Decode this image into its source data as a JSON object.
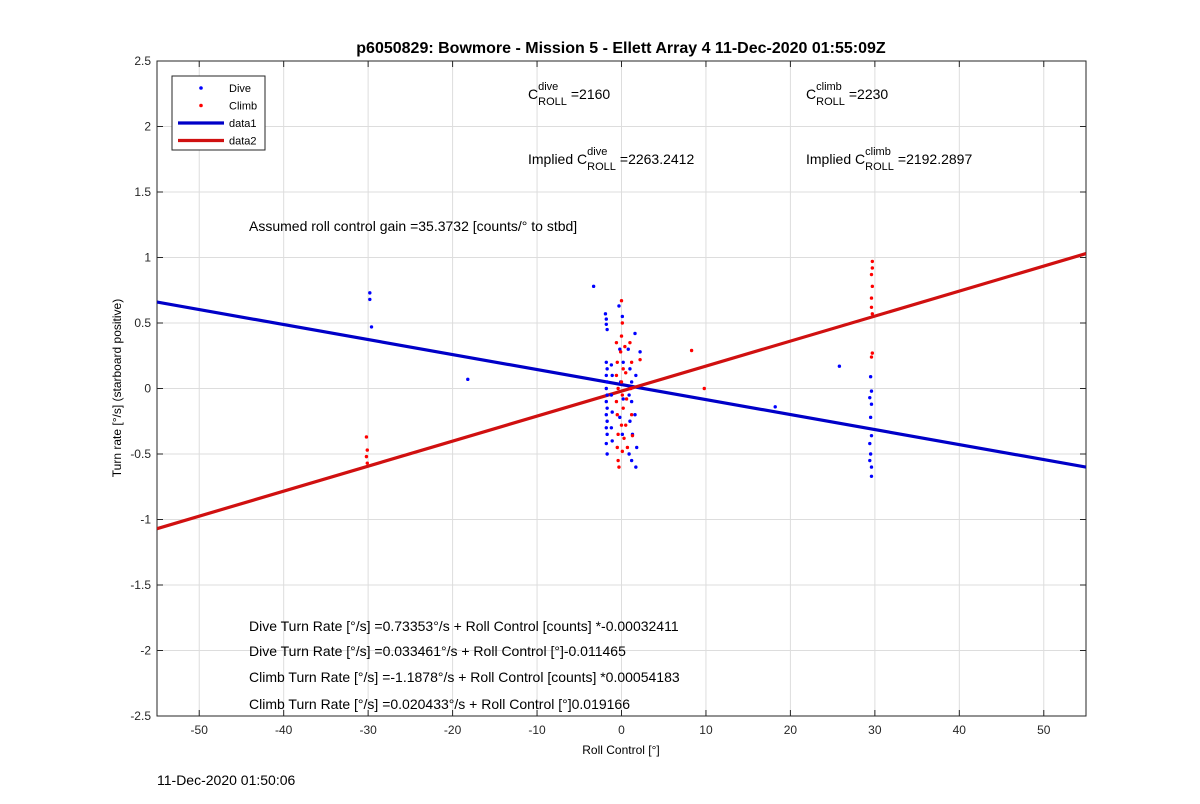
{
  "footer_timestamp": "11-Dec-2020 01:50:06",
  "colors": {
    "dive": "#0000ff",
    "climb": "#ff0000",
    "fit_dive": "#0000c8",
    "fit_climb": "#d01010",
    "grid": "#dddddd"
  },
  "chart_data": {
    "type": "scatter",
    "title": "p6050829: Bowmore - Mission 5 - Ellett Array 4 11-Dec-2020 01:55:09Z",
    "xlabel": "Roll Control [°]",
    "ylabel": "Turn rate [°/s] (starboard positive)",
    "xlim": [
      -55,
      55
    ],
    "ylim": [
      -2.5,
      2.5
    ],
    "xticks": [
      -50,
      -40,
      -30,
      -20,
      -10,
      0,
      10,
      20,
      30,
      40,
      50
    ],
    "yticks": [
      -2.5,
      -2,
      -1.5,
      -1,
      -0.5,
      0,
      0.5,
      1,
      1.5,
      2,
      2.5
    ],
    "grid": true,
    "legend": {
      "position": "top-left",
      "entries": [
        {
          "label": "Dive",
          "style": "marker",
          "color": "#0000ff"
        },
        {
          "label": "Climb",
          "style": "marker",
          "color": "#ff0000"
        },
        {
          "label": "data1",
          "style": "line",
          "color": "#0000c8"
        },
        {
          "label": "data2",
          "style": "line",
          "color": "#d01010"
        }
      ]
    },
    "series": [
      {
        "name": "Dive",
        "style": "points",
        "color": "#0000ff",
        "points": [
          [
            -29.8,
            0.73
          ],
          [
            -29.8,
            0.68
          ],
          [
            -29.6,
            0.47
          ],
          [
            -18.2,
            0.07
          ],
          [
            -3.3,
            0.78
          ],
          [
            -1.9,
            0.57
          ],
          [
            -1.8,
            0.53
          ],
          [
            -1.8,
            0.49
          ],
          [
            -1.7,
            0.45
          ],
          [
            -1.8,
            0.2
          ],
          [
            -1.7,
            0.15
          ],
          [
            -1.8,
            0.1
          ],
          [
            -1.7,
            0.05
          ],
          [
            -1.8,
            0.0
          ],
          [
            -1.7,
            -0.05
          ],
          [
            -1.8,
            -0.1
          ],
          [
            -1.7,
            -0.15
          ],
          [
            -1.8,
            -0.2
          ],
          [
            -1.7,
            -0.25
          ],
          [
            -1.8,
            -0.3
          ],
          [
            -1.7,
            -0.35
          ],
          [
            -1.8,
            -0.42
          ],
          [
            -1.7,
            -0.5
          ],
          [
            -1.2,
            0.18
          ],
          [
            -1.1,
            0.1
          ],
          [
            -1.2,
            -0.05
          ],
          [
            -1.1,
            -0.18
          ],
          [
            -1.2,
            -0.3
          ],
          [
            -1.1,
            -0.4
          ],
          [
            -0.3,
            0.63
          ],
          [
            0.1,
            0.55
          ],
          [
            -0.2,
            0.3
          ],
          [
            0.2,
            0.2
          ],
          [
            -0.1,
            0.05
          ],
          [
            0.2,
            -0.08
          ],
          [
            -0.2,
            -0.22
          ],
          [
            0.1,
            -0.35
          ],
          [
            0.8,
            0.3
          ],
          [
            1.0,
            0.15
          ],
          [
            0.9,
            -0.05
          ],
          [
            1.0,
            -0.25
          ],
          [
            0.9,
            -0.5
          ],
          [
            1.2,
            0.05
          ],
          [
            1.2,
            -0.1
          ],
          [
            1.3,
            -0.35
          ],
          [
            1.2,
            -0.55
          ],
          [
            1.6,
            0.42
          ],
          [
            1.7,
            0.1
          ],
          [
            1.6,
            -0.2
          ],
          [
            1.8,
            -0.45
          ],
          [
            1.7,
            -0.6
          ],
          [
            2.2,
            0.28
          ],
          [
            18.2,
            -0.14
          ],
          [
            25.8,
            0.17
          ],
          [
            29.5,
            0.09
          ],
          [
            29.6,
            -0.02
          ],
          [
            29.4,
            -0.07
          ],
          [
            29.6,
            -0.12
          ],
          [
            29.5,
            -0.22
          ],
          [
            29.6,
            -0.36
          ],
          [
            29.4,
            -0.42
          ],
          [
            29.5,
            -0.5
          ],
          [
            29.4,
            -0.55
          ],
          [
            29.6,
            -0.6
          ],
          [
            29.6,
            -0.67
          ]
        ]
      },
      {
        "name": "Climb",
        "style": "points",
        "color": "#ff0000",
        "points": [
          [
            -30.2,
            -0.37
          ],
          [
            -30.1,
            -0.47
          ],
          [
            -30.2,
            -0.52
          ],
          [
            -30.1,
            -0.57
          ],
          [
            -0.6,
            0.35
          ],
          [
            -0.5,
            0.2
          ],
          [
            -0.6,
            0.1
          ],
          [
            -0.4,
            0.0
          ],
          [
            -0.6,
            -0.1
          ],
          [
            -0.5,
            -0.2
          ],
          [
            -0.4,
            -0.35
          ],
          [
            -0.5,
            -0.45
          ],
          [
            -0.4,
            -0.55
          ],
          [
            -0.3,
            -0.6
          ],
          [
            0.0,
            0.67
          ],
          [
            0.1,
            0.5
          ],
          [
            0.0,
            0.4
          ],
          [
            -0.1,
            0.28
          ],
          [
            0.2,
            0.15
          ],
          [
            0.0,
            0.05
          ],
          [
            0.1,
            -0.05
          ],
          [
            0.2,
            -0.15
          ],
          [
            0.0,
            -0.28
          ],
          [
            0.3,
            -0.38
          ],
          [
            0.1,
            -0.48
          ],
          [
            0.4,
            0.32
          ],
          [
            0.5,
            0.12
          ],
          [
            0.6,
            -0.08
          ],
          [
            0.5,
            -0.28
          ],
          [
            0.7,
            -0.45
          ],
          [
            1.2,
            0.2
          ],
          [
            1.1,
            0.0
          ],
          [
            1.2,
            -0.2
          ],
          [
            1.3,
            -0.36
          ],
          [
            1.0,
            0.35
          ],
          [
            2.2,
            0.22
          ],
          [
            8.3,
            0.29
          ],
          [
            9.8,
            0.0
          ],
          [
            29.7,
            0.97
          ],
          [
            29.7,
            0.92
          ],
          [
            29.6,
            0.87
          ],
          [
            29.7,
            0.78
          ],
          [
            29.6,
            0.69
          ],
          [
            29.6,
            0.62
          ],
          [
            29.7,
            0.57
          ],
          [
            29.7,
            0.27
          ],
          [
            29.6,
            0.24
          ]
        ]
      },
      {
        "name": "data1",
        "style": "line",
        "color": "#0000c8",
        "x": [
          -55,
          55
        ],
        "y": [
          0.66,
          -0.6
        ]
      },
      {
        "name": "data2",
        "style": "line",
        "color": "#d01010",
        "x": [
          -55,
          55
        ],
        "y": [
          -1.07,
          1.03
        ]
      }
    ],
    "annotations": [
      {
        "text": "Assumed roll control gain =35.3732 [counts/° to stbd]"
      },
      {
        "text": "Dive Turn Rate [°/s] =0.73353°/s + Roll Control [counts] *-0.00032411"
      },
      {
        "text": "Dive Turn Rate [°/s] =0.033461°/s + Roll Control [°]-0.011465"
      },
      {
        "text": "Climb Turn Rate [°/s] =-1.1878°/s + Roll Control [counts] *0.00054183"
      },
      {
        "text": "Climb Turn Rate [°/s] =0.020433°/s + Roll Control [°]0.019166"
      }
    ],
    "coefficients": [
      {
        "prefix": "",
        "sup": "dive",
        "sub": "ROLL",
        "value": "=2160"
      },
      {
        "prefix": "",
        "sup": "climb",
        "sub": "ROLL",
        "value": "=2230"
      },
      {
        "prefix": "Implied ",
        "sup": "dive",
        "sub": "ROLL",
        "value": "=2263.2412"
      },
      {
        "prefix": "Implied ",
        "sup": "climb",
        "sub": "ROLL",
        "value": "=2192.2897"
      }
    ]
  }
}
